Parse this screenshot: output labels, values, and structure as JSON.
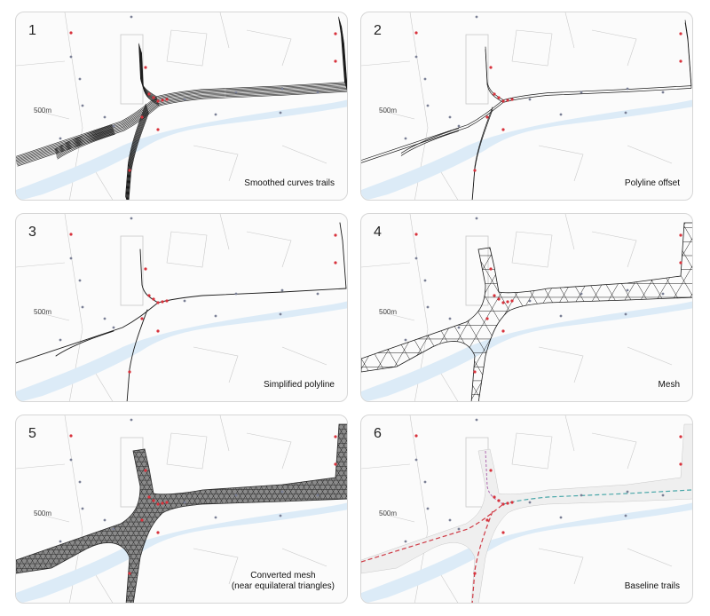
{
  "panels": [
    {
      "number": "1",
      "scale": "500m",
      "caption": [
        "Smoothed curves trails"
      ],
      "mode": "trails"
    },
    {
      "number": "2",
      "scale": "500m",
      "caption": [
        "Polyline offset"
      ],
      "mode": "offset"
    },
    {
      "number": "3",
      "scale": "500m",
      "caption": [
        "Simplified polyline"
      ],
      "mode": "simplified"
    },
    {
      "number": "4",
      "scale": "500m",
      "caption": [
        "Mesh"
      ],
      "mode": "mesh"
    },
    {
      "number": "5",
      "scale": "500m",
      "caption": [
        "Converted mesh",
        "(near equilateral triangles)"
      ],
      "mode": "converted"
    },
    {
      "number": "6",
      "scale": "500m",
      "caption": [
        "Baseline trails"
      ],
      "mode": "baseline"
    }
  ],
  "colors": {
    "river": "#dcebf7",
    "trail": "#1a1a1a",
    "marker_red": "#d8323c",
    "marker_grey": "#7a7f95",
    "baseline_red": "#cf3a45",
    "baseline_teal": "#4aa7a9",
    "map_lines": "#c9c9c9"
  }
}
